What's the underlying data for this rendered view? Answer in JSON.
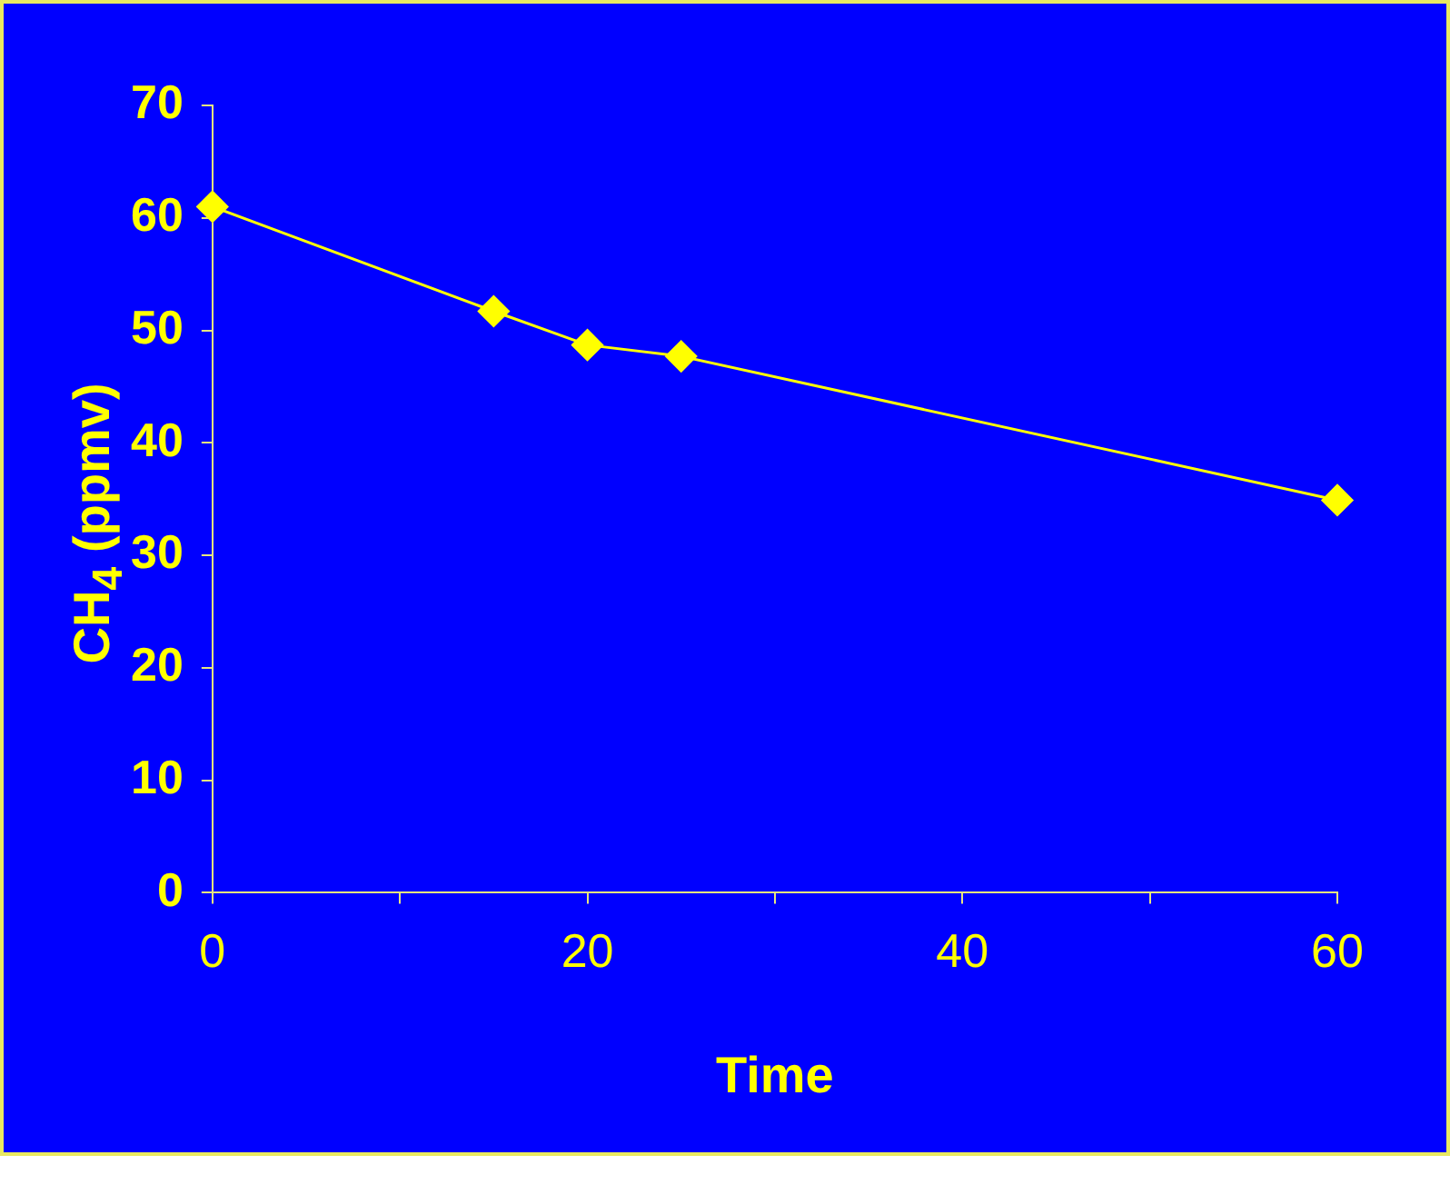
{
  "chart_data": {
    "type": "line",
    "xlabel": "Time",
    "ylabel": "CH$_{4}$ (ppmv)",
    "x": [
      0,
      15,
      20,
      25,
      60
    ],
    "series": [
      {
        "color": "#ffff00",
        "values": [
          61,
          51.7,
          48.7,
          47.7,
          34.9
        ]
      }
    ],
    "xlim": [
      0,
      60
    ],
    "xticks": [
      0,
      {
        "value": 10,
        "label": null
      },
      20,
      {
        "value": 30,
        "label": null
      },
      40,
      {
        "value": 50,
        "label": null
      },
      60
    ],
    "ylim": [
      0,
      70
    ],
    "yticks": [
      0,
      10,
      20,
      30,
      40,
      50,
      60,
      70
    ],
    "marker": "diamond",
    "line_style": "solid",
    "legend": false
  }
}
